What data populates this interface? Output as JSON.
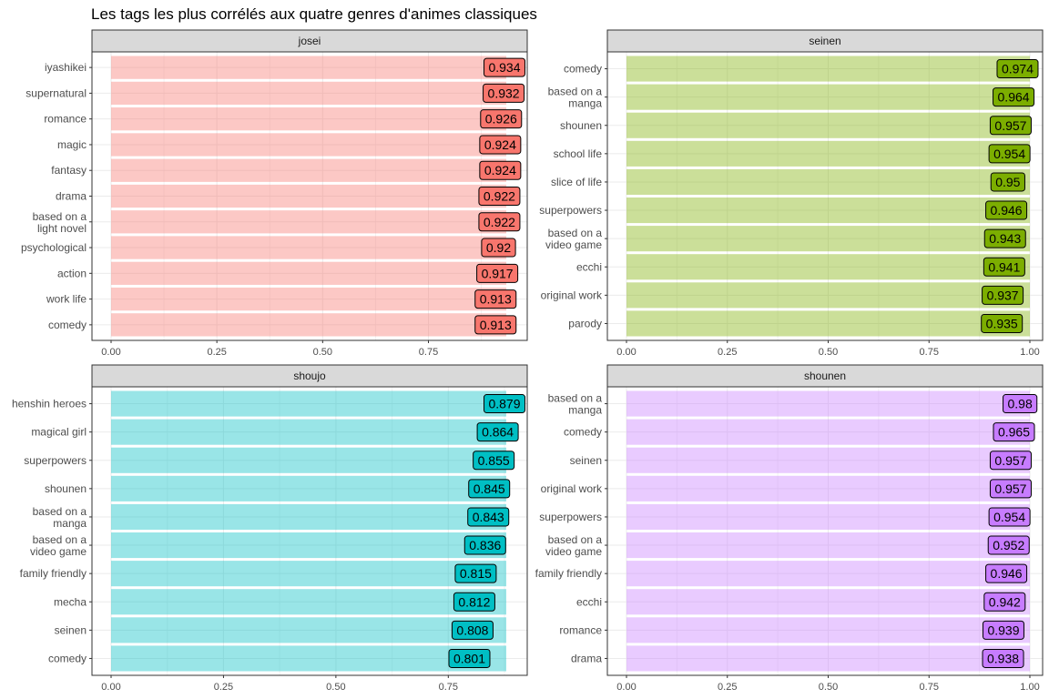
{
  "title": "Les tags les plus corrélés aux quatre genres d'animes classiques",
  "chart_data": [
    {
      "type": "bar",
      "orientation": "horizontal",
      "facet": "josei",
      "color": "#F8766D",
      "xlim": [
        0,
        0.934
      ],
      "xticks": [
        "0.00",
        "0.25",
        "0.50",
        "0.75"
      ],
      "grid": true,
      "categories": [
        "iyashikei",
        "supernatural",
        "romance",
        "magic",
        "fantasy",
        "drama",
        "based on a\nlight novel",
        "psychological",
        "action",
        "work life",
        "comedy"
      ],
      "values": [
        0.934,
        0.932,
        0.926,
        0.924,
        0.924,
        0.922,
        0.922,
        0.92,
        0.917,
        0.913,
        0.913
      ],
      "labels": [
        "0.934",
        "0.932",
        "0.926",
        "0.924",
        "0.924",
        "0.922",
        "0.922",
        "0.92",
        "0.917",
        "0.913",
        "0.913"
      ]
    },
    {
      "type": "bar",
      "orientation": "horizontal",
      "facet": "seinen",
      "color": "#7CAE00",
      "xlim": [
        0,
        1.0
      ],
      "xticks": [
        "0.00",
        "0.25",
        "0.50",
        "0.75",
        "1.00"
      ],
      "grid": true,
      "categories": [
        "comedy",
        "based on a\nmanga",
        "shounen",
        "school life",
        "slice of life",
        "superpowers",
        "based on a\nvideo game",
        "ecchi",
        "original work",
        "parody"
      ],
      "values": [
        0.974,
        0.964,
        0.957,
        0.954,
        0.95,
        0.946,
        0.943,
        0.941,
        0.937,
        0.935
      ],
      "labels": [
        "0.974",
        "0.964",
        "0.957",
        "0.954",
        "0.95",
        "0.946",
        "0.943",
        "0.941",
        "0.937",
        "0.935"
      ]
    },
    {
      "type": "bar",
      "orientation": "horizontal",
      "facet": "shoujo",
      "color": "#00BFC4",
      "xlim": [
        0,
        0.879
      ],
      "xticks": [
        "0.00",
        "0.25",
        "0.50",
        "0.75"
      ],
      "grid": true,
      "categories": [
        "henshin heroes",
        "magical girl",
        "superpowers",
        "shounen",
        "based on a\nmanga",
        "based on a\nvideo game",
        "family friendly",
        "mecha",
        "seinen",
        "comedy"
      ],
      "values": [
        0.879,
        0.864,
        0.855,
        0.845,
        0.843,
        0.836,
        0.815,
        0.812,
        0.808,
        0.801
      ],
      "labels": [
        "0.879",
        "0.864",
        "0.855",
        "0.845",
        "0.843",
        "0.836",
        "0.815",
        "0.812",
        "0.808",
        "0.801"
      ]
    },
    {
      "type": "bar",
      "orientation": "horizontal",
      "facet": "shounen",
      "color": "#C77CFF",
      "xlim": [
        0,
        1.0
      ],
      "xticks": [
        "0.00",
        "0.25",
        "0.50",
        "0.75",
        "1.00"
      ],
      "grid": true,
      "categories": [
        "based on a\nmanga",
        "comedy",
        "seinen",
        "original work",
        "superpowers",
        "based on a\nvideo game",
        "family friendly",
        "ecchi",
        "romance",
        "drama"
      ],
      "values": [
        0.98,
        0.965,
        0.957,
        0.957,
        0.954,
        0.952,
        0.946,
        0.942,
        0.939,
        0.938
      ],
      "labels": [
        "0.98",
        "0.965",
        "0.957",
        "0.957",
        "0.954",
        "0.952",
        "0.946",
        "0.942",
        "0.939",
        "0.938"
      ]
    }
  ]
}
